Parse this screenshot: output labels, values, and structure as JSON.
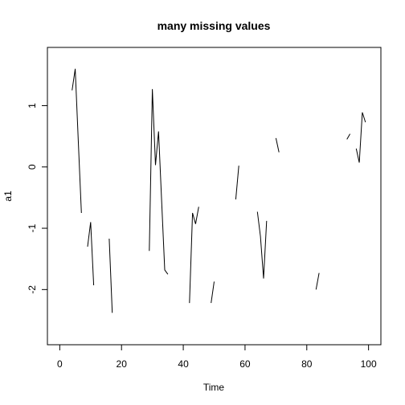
{
  "chart_data": {
    "type": "line",
    "title": "many missing values",
    "xlabel": "Time",
    "ylabel": "a1",
    "xlim": [
      -4,
      104
    ],
    "ylim": [
      -2.9,
      1.95
    ],
    "xticks": [
      0,
      20,
      40,
      60,
      80,
      100
    ],
    "yticks": [
      -2,
      -1,
      0,
      1
    ],
    "grid": false,
    "segments": [
      {
        "x": [
          4,
          5,
          6,
          7
        ],
        "y": [
          1.25,
          1.6,
          0.43,
          -0.75
        ]
      },
      {
        "x": [
          9,
          10,
          11
        ],
        "y": [
          -1.3,
          -0.9,
          -1.93
        ]
      },
      {
        "x": [
          16,
          17
        ],
        "y": [
          -1.17,
          -2.38
        ]
      },
      {
        "x": [
          29,
          30,
          31,
          32,
          33,
          34,
          35
        ],
        "y": [
          -1.37,
          1.27,
          0.03,
          0.58,
          -0.57,
          -1.68,
          -1.75
        ]
      },
      {
        "x": [
          42,
          43,
          44,
          45
        ],
        "y": [
          -2.22,
          -0.75,
          -0.93,
          -0.65
        ]
      },
      {
        "x": [
          49,
          50
        ],
        "y": [
          -2.22,
          -1.87
        ]
      },
      {
        "x": [
          57,
          58
        ],
        "y": [
          -0.53,
          0.02
        ]
      },
      {
        "x": [
          64,
          65,
          66,
          67
        ],
        "y": [
          -0.73,
          -1.13,
          -1.82,
          -0.88
        ]
      },
      {
        "x": [
          70,
          71
        ],
        "y": [
          0.47,
          0.24
        ]
      },
      {
        "x": [
          83,
          84
        ],
        "y": [
          -2.0,
          -1.73
        ]
      },
      {
        "x": [
          93,
          94
        ],
        "y": [
          0.45,
          0.54
        ]
      },
      {
        "x": [
          96,
          97,
          98,
          99
        ],
        "y": [
          0.3,
          0.07,
          0.89,
          0.73
        ]
      }
    ]
  }
}
